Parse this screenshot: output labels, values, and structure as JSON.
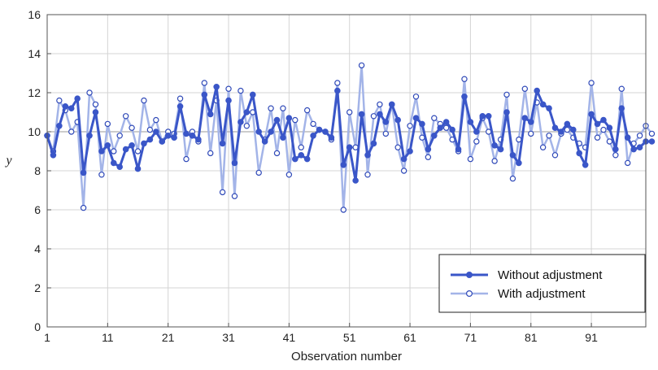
{
  "chart_data": {
    "type": "line",
    "xlabel": "Observation number",
    "ylabel": "y",
    "xlim": [
      1,
      100
    ],
    "ylim": [
      0,
      16
    ],
    "x_ticks": [
      1,
      11,
      21,
      31,
      41,
      51,
      61,
      71,
      81,
      91
    ],
    "y_ticks": [
      0,
      2,
      4,
      6,
      8,
      10,
      12,
      14,
      16
    ],
    "reference_line": 10,
    "grid": true,
    "legend_position": "bottom-right",
    "series": [
      {
        "name": "Without adjustment",
        "color": "#3a56c8",
        "marker": "filled-circle",
        "values": [
          9.8,
          8.8,
          10.3,
          11.3,
          11.2,
          11.7,
          7.9,
          9.8,
          11.0,
          9.0,
          9.3,
          8.4,
          8.2,
          9.1,
          9.3,
          8.1,
          9.4,
          9.6,
          10.0,
          9.5,
          9.8,
          9.7,
          11.3,
          9.9,
          9.8,
          9.6,
          11.9,
          10.9,
          12.3,
          9.4,
          11.6,
          8.4,
          10.5,
          11.0,
          11.9,
          10.0,
          9.5,
          10.0,
          10.6,
          9.7,
          10.7,
          8.6,
          8.8,
          8.6,
          9.8,
          10.1,
          10.0,
          9.7,
          12.1,
          8.3,
          9.2,
          7.5,
          10.9,
          8.8,
          9.4,
          10.9,
          10.5,
          11.4,
          10.6,
          8.6,
          9.0,
          10.7,
          10.4,
          9.1,
          9.8,
          10.2,
          10.5,
          10.1,
          9.1,
          11.8,
          10.5,
          10.0,
          10.8,
          10.8,
          9.3,
          9.1,
          11.0,
          8.8,
          8.4,
          10.7,
          10.5,
          12.1,
          11.4,
          11.2,
          10.2,
          10.0,
          10.4,
          10.1,
          8.9,
          8.3,
          10.9,
          10.4,
          10.6,
          10.2,
          9.1,
          11.2,
          9.7,
          9.1,
          9.2,
          9.5,
          9.5
        ]
      },
      {
        "name": "With adjustment",
        "color": "#a3b4e8",
        "marker": "open-circle",
        "values": [
          9.8,
          9.0,
          11.6,
          11.1,
          10.0,
          10.5,
          6.1,
          12.0,
          11.4,
          7.8,
          10.4,
          9.0,
          9.8,
          10.8,
          10.2,
          9.0,
          11.6,
          10.1,
          10.6,
          9.5,
          10.0,
          9.9,
          11.7,
          8.6,
          10.0,
          9.5,
          12.5,
          8.9,
          11.6,
          6.9,
          12.2,
          6.7,
          12.1,
          10.3,
          11.0,
          7.9,
          9.6,
          11.2,
          8.9,
          11.2,
          7.8,
          10.6,
          9.2,
          11.1,
          10.4,
          10.1,
          10.0,
          9.6,
          12.5,
          6.0,
          11.0,
          9.2,
          13.4,
          7.8,
          10.8,
          11.4,
          9.9,
          11.4,
          9.2,
          8.0,
          10.3,
          11.8,
          9.7,
          8.7,
          10.7,
          10.4,
          10.2,
          9.6,
          9.0,
          12.7,
          8.6,
          9.5,
          10.7,
          10.0,
          8.5,
          9.6,
          11.9,
          7.6,
          9.6,
          12.2,
          9.9,
          11.5,
          9.2,
          9.8,
          8.8,
          9.9,
          10.1,
          9.7,
          9.4,
          9.2,
          12.5,
          9.7,
          10.1,
          9.5,
          8.8,
          12.2,
          8.4,
          9.4,
          9.8,
          10.3,
          9.9
        ]
      }
    ]
  }
}
